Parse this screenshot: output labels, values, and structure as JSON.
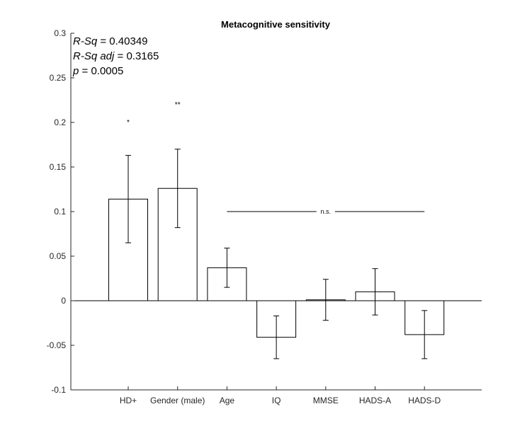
{
  "chart_data": {
    "type": "bar",
    "title": "Metacognitive sensitivity",
    "xlabel": "",
    "ylabel": "",
    "categories": [
      "HD+",
      "Gender (male)",
      "Age",
      "IQ",
      "MMSE",
      "HADS-A",
      "HADS-D"
    ],
    "values": [
      0.114,
      0.126,
      0.037,
      -0.041,
      0.001,
      0.01,
      -0.038
    ],
    "errors": [
      0.049,
      0.044,
      0.022,
      0.024,
      0.023,
      0.026,
      0.027
    ],
    "ylim": [
      -0.1,
      0.3
    ],
    "yticks": [
      "-0.1",
      "-0.05",
      "0",
      "0.05",
      "0.1",
      "0.15",
      "0.2",
      "0.25",
      "0.3"
    ],
    "significance": [
      {
        "category": "HD+",
        "label": "*",
        "y": 0.2
      },
      {
        "category": "Gender (male)",
        "label": "**",
        "y": 0.22
      }
    ],
    "ns_bracket": {
      "from": "Age",
      "to": "HADS-D",
      "label": "n.s.",
      "y": 0.1
    },
    "stats": [
      {
        "name": "R-Sq",
        "value": "= 0.40349"
      },
      {
        "name": "R-Sq adj",
        "value": "= 0.3165"
      },
      {
        "name": "p",
        "value": "= 0.0005"
      }
    ],
    "grid": false,
    "legend": "none",
    "colors": {
      "bar_fill": "#ffffff",
      "bar_edge": "#000000",
      "axis": "#262626"
    }
  }
}
